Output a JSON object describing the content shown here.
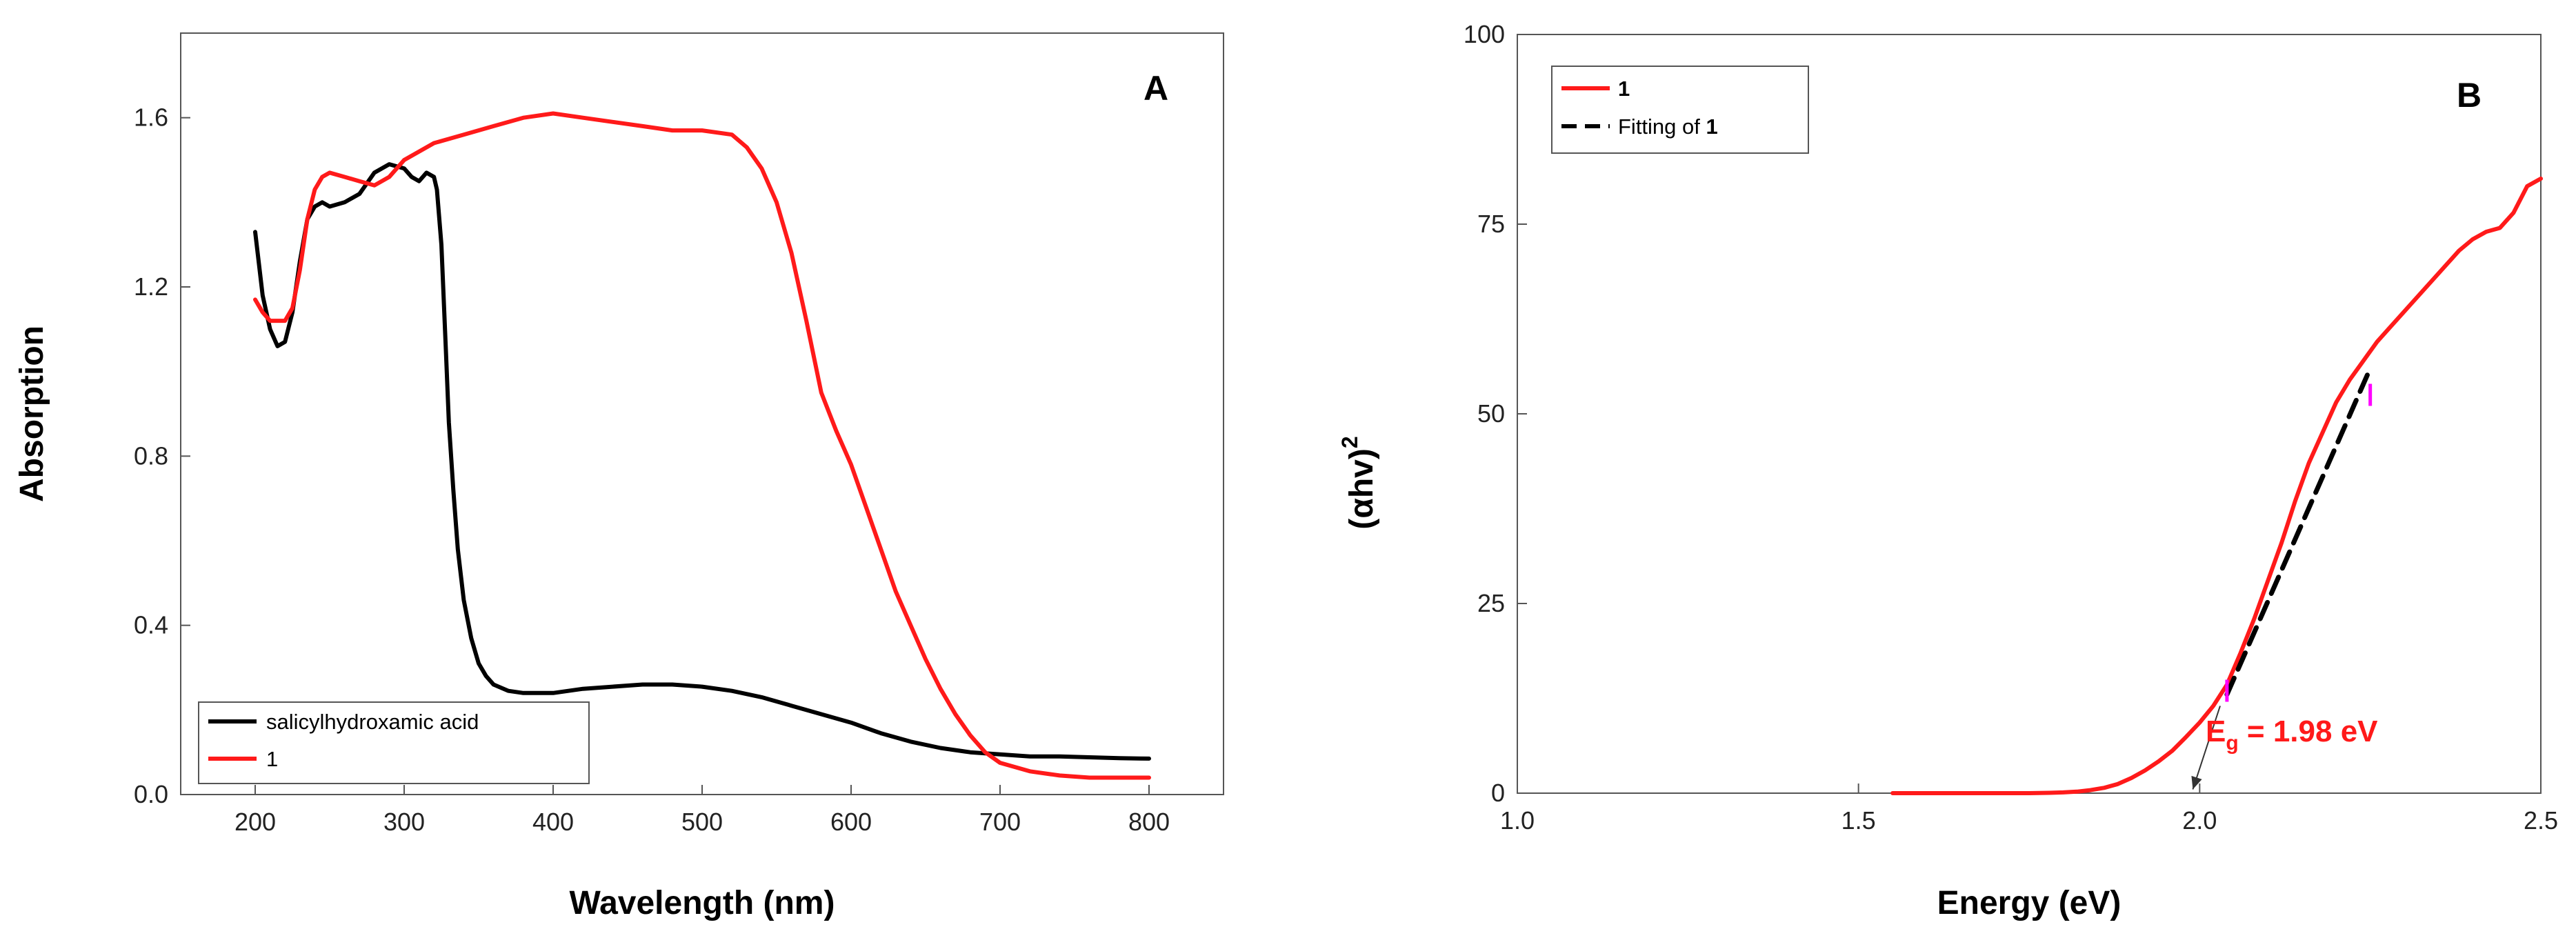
{
  "colors": {
    "black_series": "#000000",
    "red_series": "#ff1a1a",
    "fit_line": "#000000",
    "marker": "#ff00ff"
  },
  "chart_data": [
    {
      "panel": "A",
      "type": "line",
      "title": "",
      "xlabel": "Wavelength (nm)",
      "ylabel": "Absorption",
      "xlim": [
        150,
        850
      ],
      "ylim": [
        0.0,
        1.8
      ],
      "xticks": [
        200,
        300,
        400,
        500,
        600,
        700,
        800
      ],
      "yticks": [
        0.0,
        0.4,
        0.8,
        1.2,
        1.6
      ],
      "xtick_labels": [
        "200",
        "300",
        "400",
        "500",
        "600",
        "700",
        "800"
      ],
      "ytick_labels": [
        "0.0",
        "0.4",
        "0.8",
        "1.2",
        "1.6"
      ],
      "legend": {
        "position": "bottom-left",
        "entries": [
          {
            "label": "salicylhydroxamic acid",
            "color": "#000000"
          },
          {
            "label": "1",
            "color": "#ff1a1a"
          }
        ]
      },
      "series": [
        {
          "name": "salicylhydroxamic acid",
          "color": "#000000",
          "x": [
            200,
            205,
            210,
            215,
            220,
            225,
            230,
            235,
            240,
            245,
            250,
            260,
            270,
            280,
            290,
            300,
            305,
            310,
            315,
            320,
            322,
            325,
            328,
            330,
            333,
            336,
            340,
            345,
            350,
            355,
            360,
            370,
            380,
            390,
            400,
            420,
            440,
            460,
            480,
            500,
            520,
            540,
            560,
            580,
            600,
            620,
            640,
            660,
            680,
            700,
            720,
            740,
            760,
            780,
            800
          ],
          "y": [
            1.33,
            1.18,
            1.1,
            1.06,
            1.07,
            1.14,
            1.26,
            1.36,
            1.39,
            1.4,
            1.39,
            1.4,
            1.42,
            1.47,
            1.49,
            1.48,
            1.46,
            1.45,
            1.47,
            1.46,
            1.43,
            1.3,
            1.05,
            0.88,
            0.72,
            0.58,
            0.46,
            0.37,
            0.31,
            0.28,
            0.26,
            0.245,
            0.24,
            0.24,
            0.24,
            0.25,
            0.255,
            0.26,
            0.26,
            0.255,
            0.245,
            0.23,
            0.21,
            0.19,
            0.17,
            0.145,
            0.125,
            0.11,
            0.1,
            0.095,
            0.09,
            0.09,
            0.088,
            0.086,
            0.085
          ]
        },
        {
          "name": "1",
          "color": "#ff1a1a",
          "x": [
            200,
            205,
            210,
            215,
            220,
            225,
            230,
            235,
            240,
            245,
            250,
            260,
            270,
            280,
            290,
            300,
            320,
            340,
            360,
            380,
            400,
            420,
            440,
            460,
            480,
            500,
            520,
            530,
            540,
            550,
            560,
            570,
            580,
            590,
            600,
            610,
            620,
            630,
            640,
            650,
            660,
            670,
            680,
            690,
            700,
            720,
            740,
            760,
            780,
            800
          ],
          "y": [
            1.17,
            1.14,
            1.12,
            1.12,
            1.12,
            1.15,
            1.24,
            1.36,
            1.43,
            1.46,
            1.47,
            1.46,
            1.45,
            1.44,
            1.46,
            1.5,
            1.54,
            1.56,
            1.58,
            1.6,
            1.61,
            1.6,
            1.59,
            1.58,
            1.57,
            1.57,
            1.56,
            1.53,
            1.48,
            1.4,
            1.28,
            1.12,
            0.95,
            0.86,
            0.78,
            0.68,
            0.58,
            0.48,
            0.4,
            0.32,
            0.25,
            0.19,
            0.14,
            0.1,
            0.075,
            0.055,
            0.045,
            0.04,
            0.04,
            0.04
          ]
        }
      ]
    },
    {
      "panel": "B",
      "type": "line",
      "title": "",
      "xlabel": "Energy (eV)",
      "ylabel": "(αhv)",
      "ylabel_superscript": "2",
      "xlim": [
        1.0,
        2.5
      ],
      "ylim": [
        0,
        100
      ],
      "xticks": [
        1.0,
        1.5,
        2.0,
        2.5
      ],
      "yticks": [
        0,
        25,
        50,
        75,
        100
      ],
      "xtick_labels": [
        "1.0",
        "1.5",
        "2.0",
        "2.5"
      ],
      "ytick_labels": [
        "0",
        "25",
        "50",
        "75",
        "100"
      ],
      "legend": {
        "position": "top-left",
        "entries": [
          {
            "label": "1",
            "color": "#ff1a1a",
            "style": "solid"
          },
          {
            "label_prefix": "Fitting of ",
            "label_bold": "1",
            "color": "#000000",
            "style": "dashed"
          }
        ]
      },
      "annotation": {
        "text_main": "E",
        "text_sub": "g",
        "text_rest": " = 1.98 eV",
        "arrow_from": [
          2.03,
          11.5
        ],
        "arrow_to": [
          1.99,
          0.5
        ]
      },
      "fit_markers": [
        [
          2.04,
          13.5
        ],
        [
          2.25,
          52.5
        ]
      ],
      "series": [
        {
          "name": "1",
          "color": "#ff1a1a",
          "style": "solid",
          "x": [
            1.55,
            1.6,
            1.65,
            1.7,
            1.75,
            1.78,
            1.8,
            1.82,
            1.84,
            1.86,
            1.88,
            1.9,
            1.92,
            1.94,
            1.96,
            1.98,
            2.0,
            2.02,
            2.04,
            2.06,
            2.08,
            2.1,
            2.12,
            2.14,
            2.16,
            2.18,
            2.2,
            2.22,
            2.24,
            2.26,
            2.28,
            2.3,
            2.32,
            2.34,
            2.36,
            2.38,
            2.4,
            2.42,
            2.44,
            2.46,
            2.48,
            2.5
          ],
          "y": [
            0,
            0,
            0,
            0,
            0,
            0.05,
            0.1,
            0.2,
            0.4,
            0.7,
            1.2,
            2.0,
            3.0,
            4.2,
            5.6,
            7.4,
            9.3,
            11.5,
            14.3,
            18.5,
            23.0,
            28.0,
            33.0,
            38.5,
            43.5,
            47.5,
            51.5,
            54.5,
            57.0,
            59.5,
            61.5,
            63.5,
            65.5,
            67.5,
            69.5,
            71.5,
            73.0,
            74.0,
            74.5,
            76.5,
            80.0,
            81.0
          ]
        },
        {
          "name": "Fitting of 1",
          "color": "#000000",
          "style": "dashed",
          "x": [
            2.04,
            2.25
          ],
          "y": [
            13.0,
            56.0
          ]
        }
      ]
    }
  ]
}
